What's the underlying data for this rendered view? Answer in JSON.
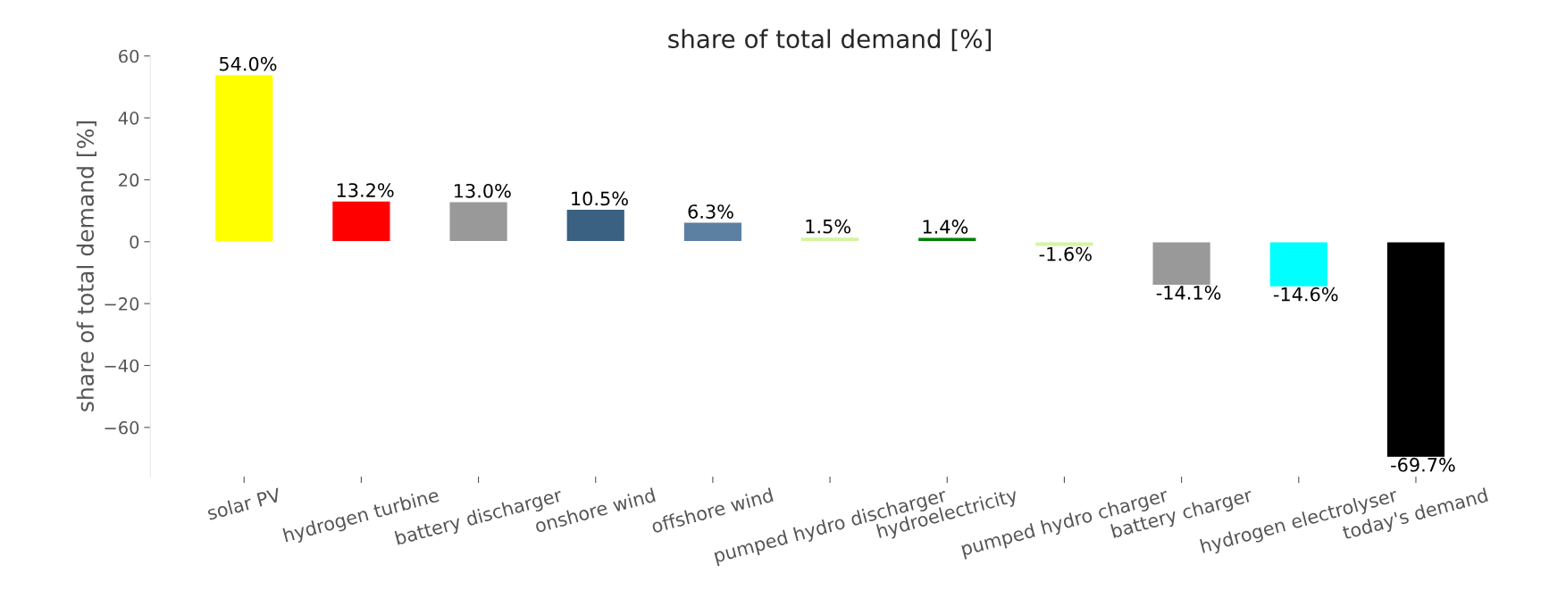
{
  "chart_data": {
    "type": "bar",
    "title": "share of total demand [%]",
    "ylabel": "share of total demand [%]",
    "categories": [
      "solar PV",
      "hydrogen turbine",
      "battery discharger",
      "onshore wind",
      "offshore wind",
      "pumped hydro discharger",
      "hydroelectricity",
      "pumped hydro charger",
      "battery charger",
      "hydrogen electrolyser",
      "today's demand"
    ],
    "values": [
      54.0,
      13.2,
      13.0,
      10.5,
      6.3,
      1.5,
      1.4,
      -1.6,
      -14.1,
      -14.6,
      -69.7
    ],
    "colors": [
      "#ffff00",
      "#ff0000",
      "#999999",
      "#3a6182",
      "#5b80a1",
      "#d3f5a0",
      "#008000",
      "#d3f5a0",
      "#999999",
      "#00ffff",
      "#000000"
    ],
    "value_labels": [
      "54.0%",
      "13.2%",
      "13.0%",
      "10.5%",
      "6.3%",
      "1.5%",
      "1.4%",
      "-1.6%",
      "-14.1%",
      "-14.6%",
      "-69.7%"
    ],
    "ylim": [
      -75.9,
      60.2
    ],
    "yticks": [
      {
        "value": -60,
        "label": "−60"
      },
      {
        "value": -40,
        "label": "−40"
      },
      {
        "value": -20,
        "label": "−20"
      },
      0,
      20,
      40,
      60
    ],
    "grid": false,
    "legend": false
  }
}
